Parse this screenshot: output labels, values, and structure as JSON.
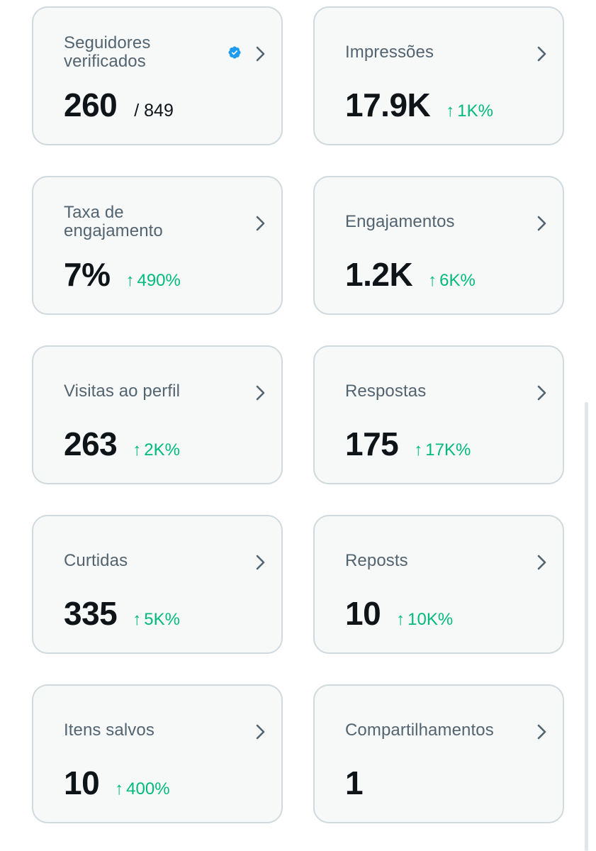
{
  "cards": [
    {
      "label": "Seguidores verificados",
      "value": "260",
      "total": "/ 849",
      "change": ""
    },
    {
      "label": "Impressões",
      "value": "17.9K",
      "total": "",
      "change": "1K%"
    },
    {
      "label": "Taxa de engajamento",
      "value": "7%",
      "total": "",
      "change": "490%"
    },
    {
      "label": "Engajamentos",
      "value": "1.2K",
      "total": "",
      "change": "6K%"
    },
    {
      "label": "Visitas ao perfil",
      "value": "263",
      "total": "",
      "change": "2K%"
    },
    {
      "label": "Respostas",
      "value": "175",
      "total": "",
      "change": "17K%"
    },
    {
      "label": "Curtidas",
      "value": "335",
      "total": "",
      "change": "5K%"
    },
    {
      "label": "Reposts",
      "value": "10",
      "total": "",
      "change": "10K%"
    },
    {
      "label": "Itens salvos",
      "value": "10",
      "total": "",
      "change": "400%"
    },
    {
      "label": "Compartilhamentos",
      "value": "1",
      "total": "",
      "change": ""
    }
  ],
  "change_arrow": "↑",
  "icons": {
    "verified": "verified-badge-icon",
    "chevron": "chevron-right-icon"
  },
  "colors": {
    "card_bg": "#f7f9f9",
    "card_border": "#cfd9de",
    "label": "#536471",
    "value": "#0f1419",
    "positive": "#00ba7c",
    "verified": "#1d9bf0"
  }
}
